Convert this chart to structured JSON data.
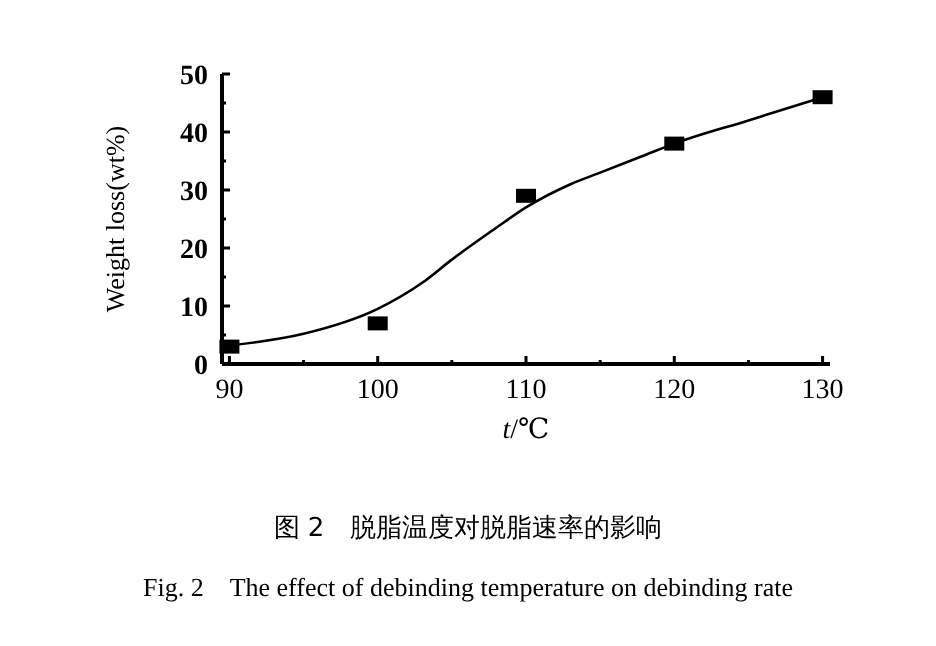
{
  "chart_data": {
    "type": "scatter",
    "title": "图 2　脱脂温度对脱脂速率的影响",
    "subtitle": "Fig. 2　The effect of debinding temperature on debinding rate",
    "xlabel": "t/℃",
    "ylabel": "Weight loss(wt%)",
    "x": [
      90,
      100,
      110,
      120,
      130
    ],
    "series": [
      {
        "color": "#000000",
        "marker": "square",
        "values": [
          3,
          7,
          29,
          38,
          46
        ]
      },
      {
        "type": "line",
        "color": "#000000",
        "marker": "none",
        "line_style": "solid",
        "x": [
          90,
          95,
          100,
          103,
          105,
          108,
          110,
          113,
          115,
          118,
          120,
          125,
          130
        ],
        "values": [
          3.2,
          5.2,
          9.5,
          14,
          18,
          23.5,
          27,
          31,
          33,
          36,
          38,
          42,
          46
        ]
      }
    ],
    "xlim": [
      89.5,
      130.5
    ],
    "xticks": [
      90,
      {
        "value": 95,
        "label": null
      },
      100,
      {
        "value": 105,
        "label": null
      },
      110,
      {
        "value": 115,
        "label": null
      },
      120,
      {
        "value": 125,
        "label": null
      },
      130
    ],
    "ylim": [
      0,
      50
    ],
    "yticks": [
      0,
      {
        "value": 5,
        "label": null
      },
      10,
      {
        "value": 15,
        "label": null
      },
      20,
      {
        "value": 25,
        "label": null
      },
      30,
      {
        "value": 35,
        "label": null
      },
      40,
      {
        "value": 45,
        "label": null
      },
      50
    ],
    "grid": false
  }
}
